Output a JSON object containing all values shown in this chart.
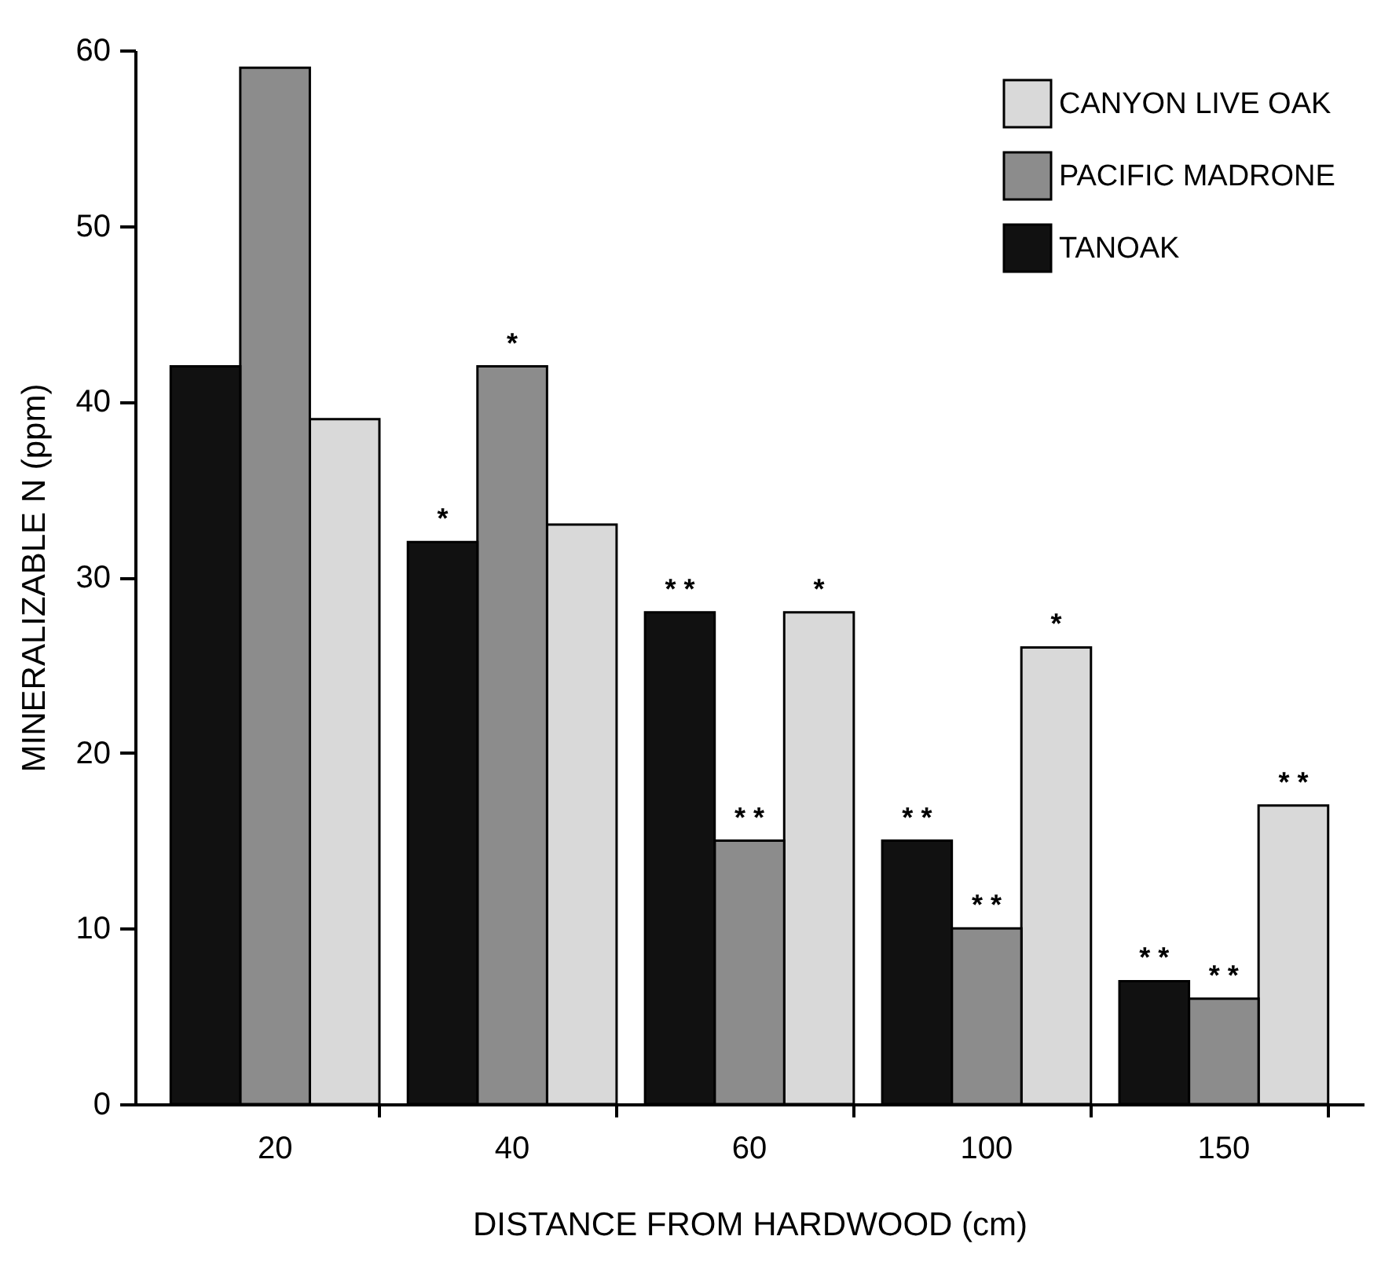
{
  "chart_data": {
    "type": "bar",
    "xlabel": "DISTANCE FROM HARDWOOD (cm)",
    "ylabel": "MINERALIZABLE N (ppm)",
    "categories": [
      "20",
      "40",
      "60",
      "100",
      "150"
    ],
    "series": [
      {
        "name": "CANYON LIVE OAK",
        "color": "#d9d9d9",
        "values": [
          39,
          33,
          28,
          26,
          17
        ],
        "value_labels": [
          null,
          null,
          "*",
          "*",
          "* *"
        ]
      },
      {
        "name": "PACIFIC MADRONE",
        "color": "#8c8c8c",
        "values": [
          59,
          42,
          15,
          10,
          6
        ],
        "value_labels": [
          null,
          "*",
          "* *",
          "* *",
          "* *"
        ]
      },
      {
        "name": "TANOAK",
        "color": "#111111",
        "values": [
          42,
          32,
          28,
          15,
          7
        ],
        "value_labels": [
          null,
          "*",
          "* *",
          "* *",
          "* *"
        ]
      }
    ],
    "ylim": [
      0,
      60
    ],
    "yticks": [
      0,
      10,
      20,
      30,
      40,
      50,
      60
    ],
    "grid": false,
    "legend": "top right"
  }
}
